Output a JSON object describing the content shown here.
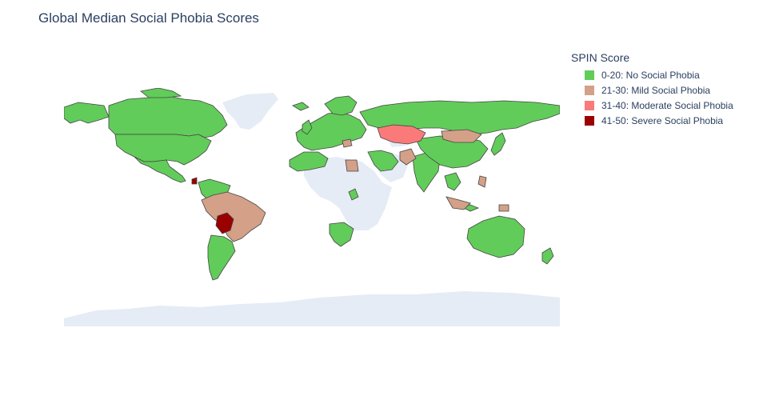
{
  "chart": {
    "title": "Global Median Social Phobia Scores",
    "legend_title": "SPIN Score",
    "legend": [
      {
        "label": "0-20: No Social Phobia",
        "color": "#62cc5a"
      },
      {
        "label": "21-30: Mild Social Phobia",
        "color": "#d4a088"
      },
      {
        "label": "31-40: Moderate Social Phobia",
        "color": "#fa7a7a"
      },
      {
        "label": "41-50: Severe Social Phobia",
        "color": "#9b0000"
      }
    ],
    "colors": {
      "ocean": "#ffffff",
      "land_no_data": "#e5ecf6",
      "border": "#444444"
    }
  },
  "chart_data": {
    "type": "choropleth",
    "projection": "equirectangular",
    "categories": [
      "0-20: No Social Phobia",
      "21-30: Mild Social Phobia",
      "31-40: Moderate Social Phobia",
      "41-50: Severe Social Phobia"
    ]
  }
}
